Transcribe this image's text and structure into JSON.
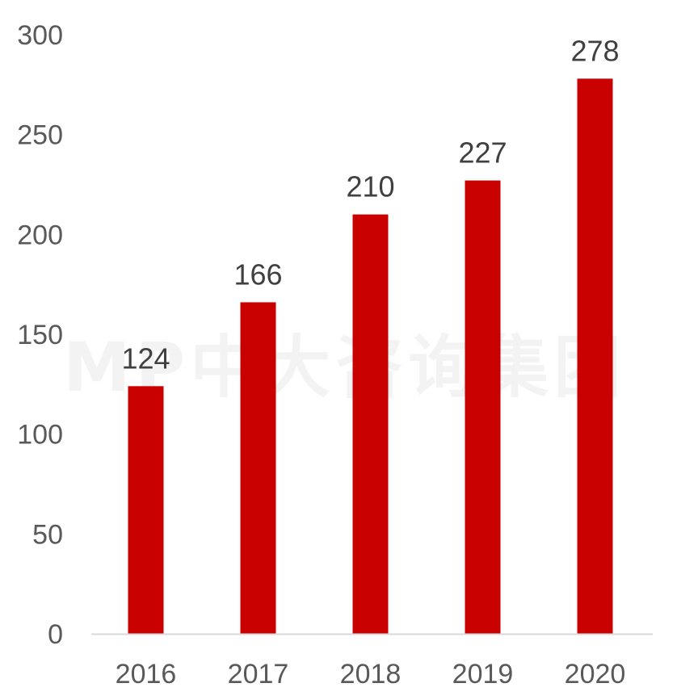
{
  "watermark": "MP中大咨询集团",
  "colors": {
    "bar": "#c80000",
    "axis_text": "#595959",
    "label_text": "#404040",
    "axis_line": "#d9d9d9"
  },
  "chart_data": {
    "type": "bar",
    "title": "",
    "xlabel": "",
    "ylabel": "",
    "categories": [
      "2016",
      "2017",
      "2018",
      "2019",
      "2020"
    ],
    "values": [
      124,
      166,
      210,
      227,
      278
    ],
    "ylim": [
      0,
      300
    ],
    "yticks": [
      0,
      50,
      100,
      150,
      200,
      250,
      300
    ],
    "data_labels": true,
    "grid": false,
    "legend": "none"
  }
}
